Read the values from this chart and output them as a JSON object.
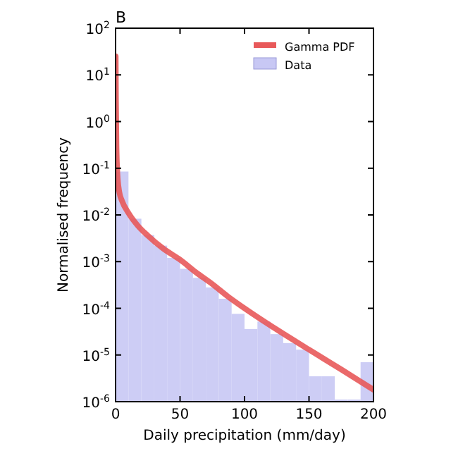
{
  "chart_data": {
    "type": "histogram",
    "title": "B",
    "xlabel": "Daily precipitation (mm/day)",
    "ylabel": "Normalised frequency",
    "log": "y",
    "xlim": [
      0,
      200
    ],
    "ylim": [
      1e-06,
      100
    ],
    "xticks": [
      0,
      50,
      100,
      150,
      200
    ],
    "yticks": [
      {
        "value": 1e-06,
        "label": "10$^{-6}$"
      },
      {
        "value": 1e-05,
        "label": "10$^{-5}$"
      },
      {
        "value": 0.0001,
        "label": "10$^{-4}$"
      },
      {
        "value": 0.001,
        "label": "10$^{-3}$"
      },
      {
        "value": 0.01,
        "label": "10$^{-2}$"
      },
      {
        "value": 0.1,
        "label": "10$^{-1}$"
      },
      {
        "value": 1,
        "label": "10$^{0}$"
      },
      {
        "value": 10,
        "label": "10$^{1}$"
      },
      {
        "value": 100,
        "label": "10$^{2}$"
      }
    ],
    "bins": [
      0,
      10,
      20,
      30,
      40,
      50,
      60,
      70,
      80,
      90,
      100,
      110,
      120,
      130,
      140,
      150,
      160,
      170,
      180,
      190,
      200
    ],
    "legend": "top right",
    "grid": false,
    "series": [
      {
        "name": "Gamma PDF",
        "type": "line",
        "color": "#e8595a",
        "x": [
          0.1,
          0.3,
          0.7,
          1.5,
          3,
          5,
          10,
          17,
          25,
          37,
          50,
          62,
          75,
          87,
          100,
          125,
          150,
          175,
          200
        ],
        "values": [
          25,
          3,
          0.3,
          0.07,
          0.03,
          0.02,
          0.011,
          0.006,
          0.0036,
          0.0019,
          0.0011,
          0.0006,
          0.00033,
          0.00018,
          0.0001,
          3.5e-05,
          1.3e-05,
          4.9e-06,
          1.8e-06
        ]
      },
      {
        "name": "Data",
        "color": "#c8c8f4",
        "values": [
          0.085,
          0.0083,
          0.0037,
          0.0022,
          0.0012,
          0.0007,
          0.00045,
          0.00028,
          0.00016,
          7.6e-05,
          3.6e-05,
          5.2e-05,
          2.8e-05,
          1.8e-05,
          1.3e-05,
          3.5e-06,
          3.5e-06,
          null,
          null,
          7e-06
        ]
      }
    ]
  }
}
